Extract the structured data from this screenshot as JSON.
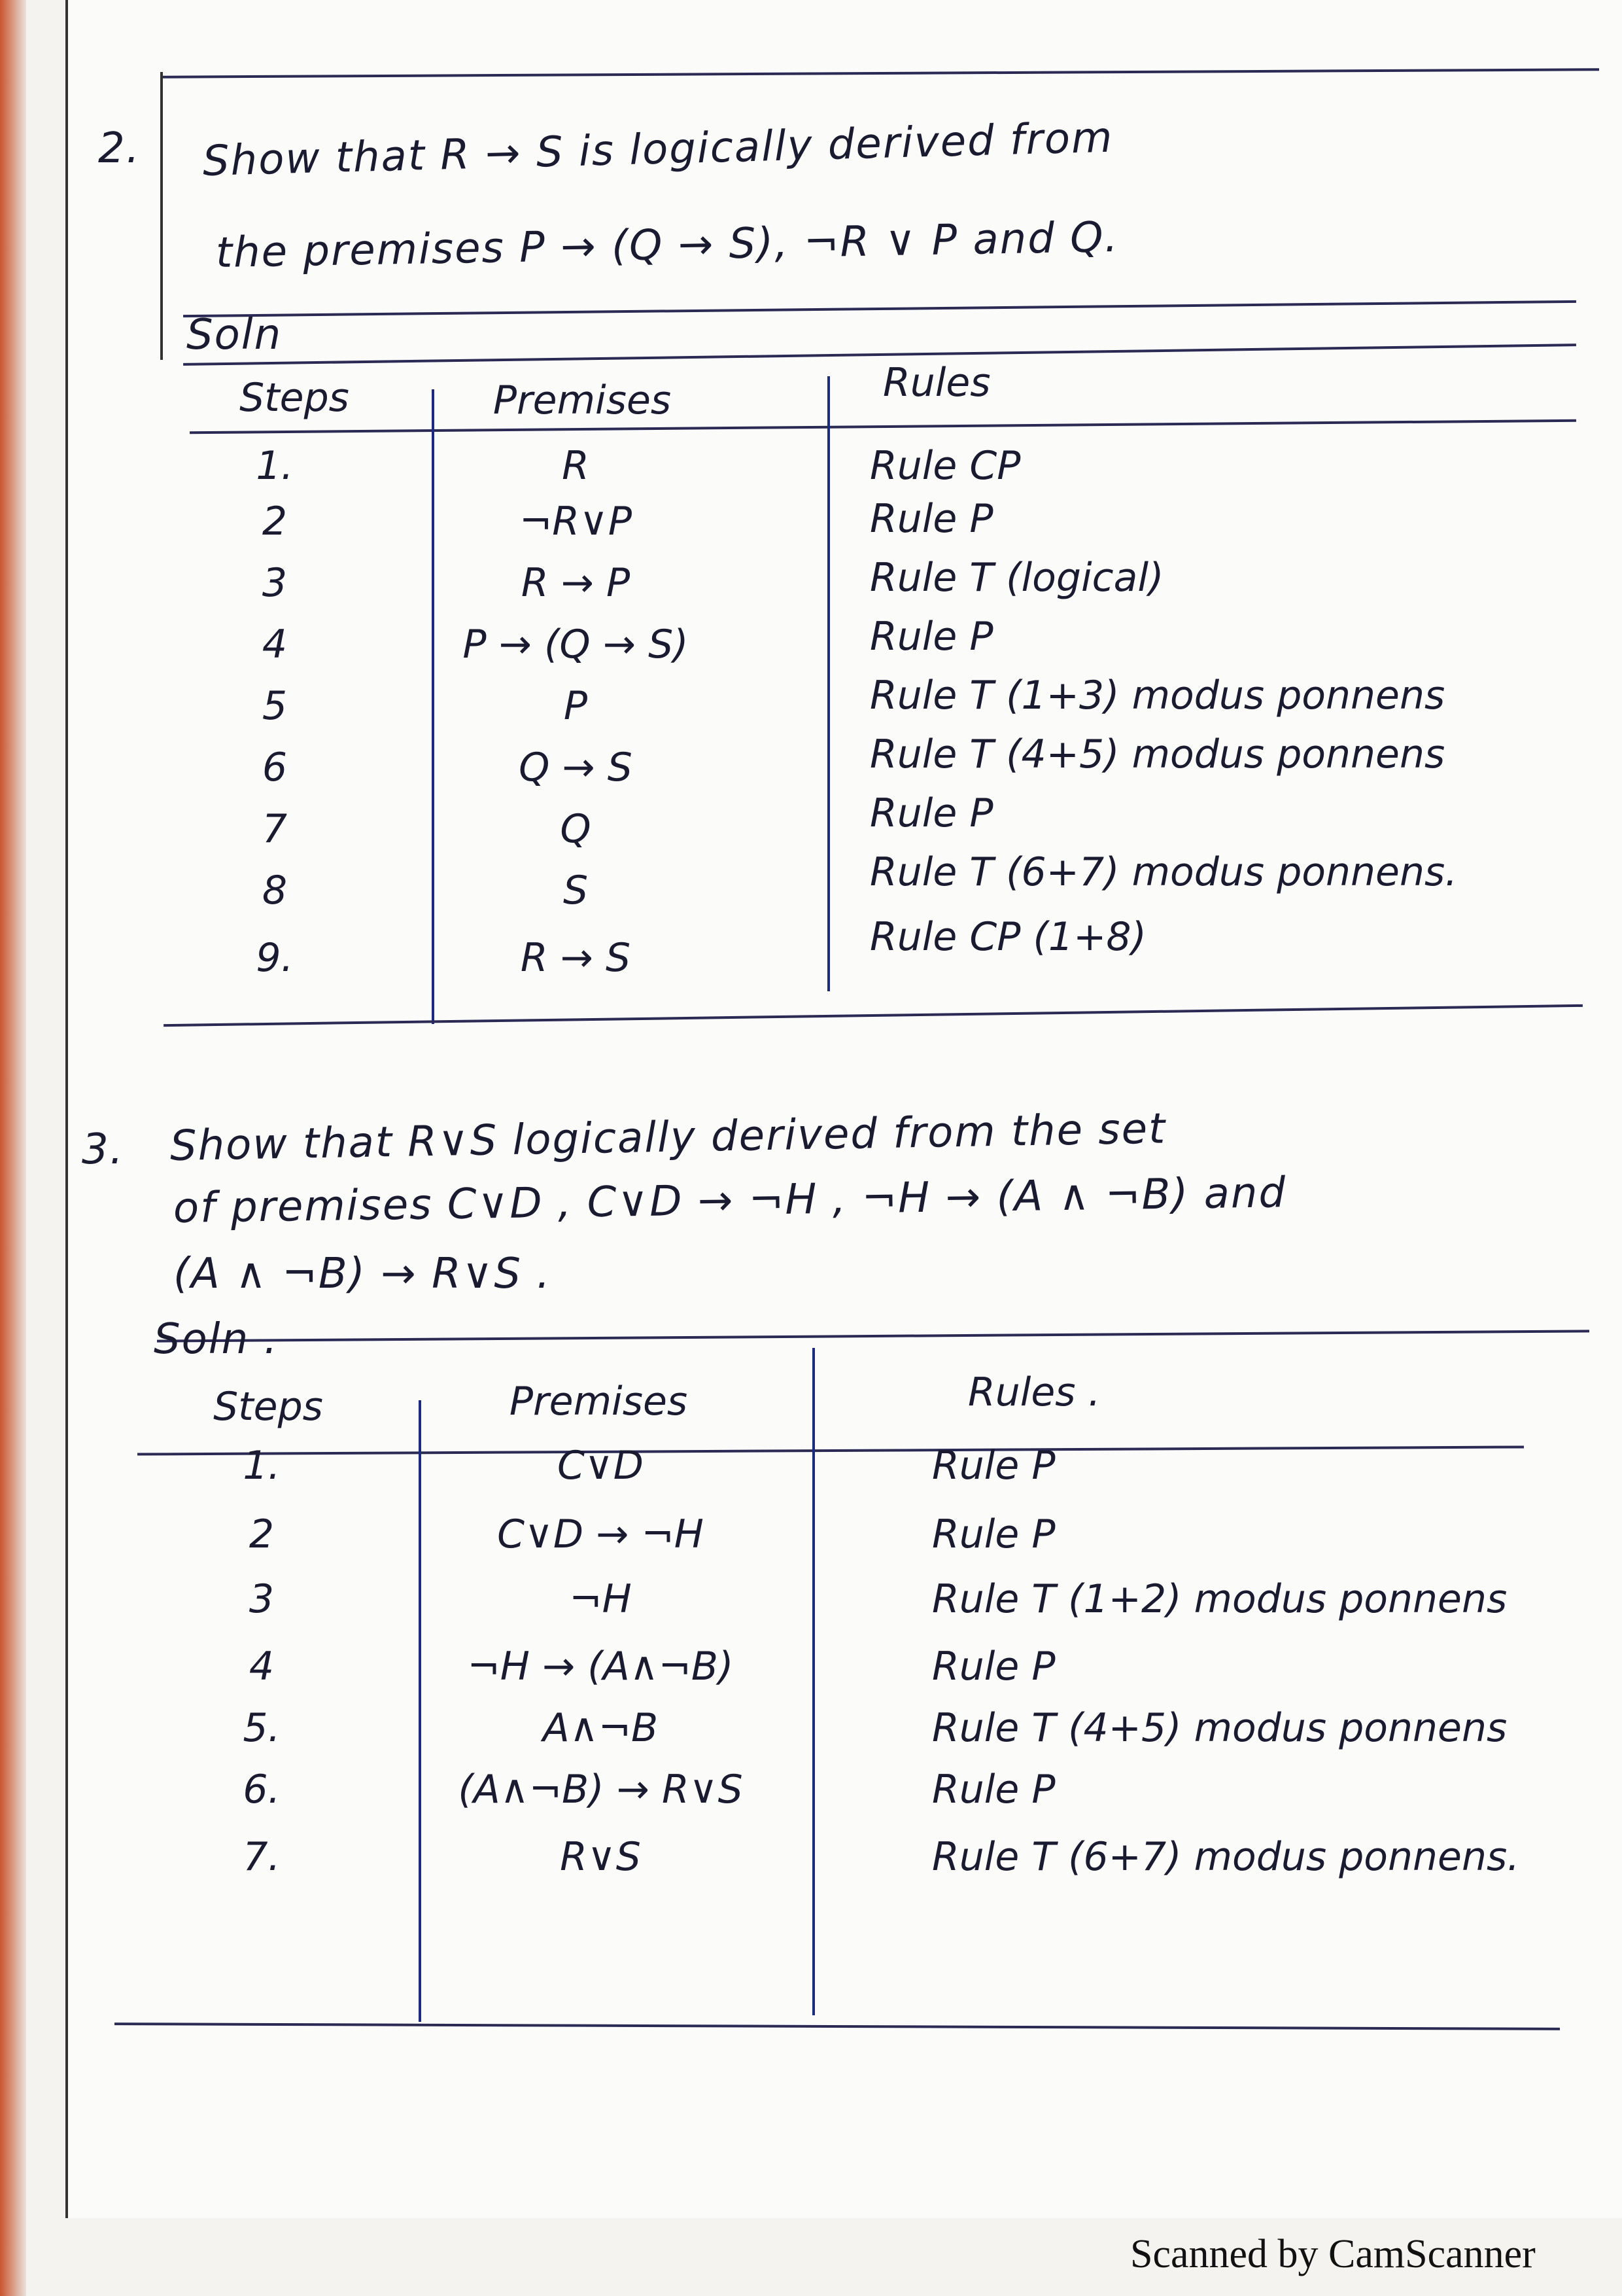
{
  "q2": {
    "number": "2.",
    "line1": "Show that  R → S  is logically derived from",
    "line2": "the premises  P → (Q → S),  ¬R ∨ P  and  Q.",
    "soln": "Soln",
    "headers": {
      "steps": "Steps",
      "premises": "Premises",
      "rules": "Rules"
    },
    "rows": [
      {
        "step": "1.",
        "premise": "R",
        "rule": "Rule CP"
      },
      {
        "step": "2",
        "premise": "¬R∨P",
        "rule": "Rule P"
      },
      {
        "step": "3",
        "premise": "R → P",
        "rule": "Rule T  (logical)"
      },
      {
        "step": "4",
        "premise": "P → (Q → S)",
        "rule": "Rule P"
      },
      {
        "step": "5",
        "premise": "P",
        "rule": "Rule T (1+3) modus ponnens"
      },
      {
        "step": "6",
        "premise": "Q → S",
        "rule": "Rule T (4+5) modus ponnens"
      },
      {
        "step": "7",
        "premise": "Q",
        "rule": "Rule P"
      },
      {
        "step": "8",
        "premise": "S",
        "rule": "Rule T (6+7) modus ponnens."
      },
      {
        "step": "9.",
        "premise": "R → S",
        "rule": "Rule CP (1+8)"
      }
    ]
  },
  "q3": {
    "number": "3.",
    "line1": "Show that  R∨S  logically derived from the set",
    "line2": "of premises  C∨D ,  C∨D → ¬H ,  ¬H → (A ∧ ¬B) and",
    "line3": "(A ∧ ¬B) → R∨S .",
    "soln": "Soln .",
    "headers": {
      "steps": "Steps",
      "premises": "Premises",
      "rules": "Rules ."
    },
    "rows": [
      {
        "step": "1.",
        "premise": "C∨D",
        "rule": "Rule P"
      },
      {
        "step": "2",
        "premise": "C∨D → ¬H",
        "rule": "Rule P"
      },
      {
        "step": "3",
        "premise": "¬H",
        "rule": "Rule T (1+2) modus ponnens"
      },
      {
        "step": "4",
        "premise": "¬H → (A∧¬B)",
        "rule": "Rule P"
      },
      {
        "step": "5.",
        "premise": "A∧¬B",
        "rule": "Rule T (4+5) modus ponnens"
      },
      {
        "step": "6.",
        "premise": "(A∧¬B) → R∨S",
        "rule": "Rule P"
      },
      {
        "step": "7.",
        "premise": "R∨S",
        "rule": "Rule T (6+7) modus ponnens."
      }
    ]
  },
  "footer": "Scanned by CamScanner"
}
